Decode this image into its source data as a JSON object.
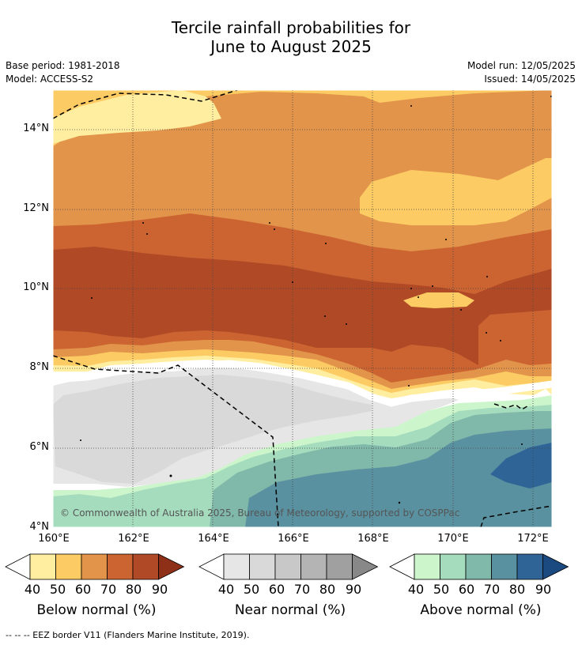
{
  "title_line1": "Tercile rainfall probabilities for",
  "title_line2": "June to August 2025",
  "base_period": "Base period: 1981-2018",
  "model": "Model: ACCESS-S2",
  "model_run": "Model run: 12/05/2025",
  "issued": "Issued: 14/05/2025",
  "copyright": "© Commonwealth of Australia 2025, Bureau of Meteorology, supported by COSPPac",
  "lat_labels": [
    "14°N",
    "12°N",
    "10°N",
    "8°N",
    "6°N",
    "4°N"
  ],
  "lon_labels": [
    "160°E",
    "162°E",
    "164°E",
    "166°E",
    "168°E",
    "170°E",
    "172°E"
  ],
  "legends": {
    "below": {
      "title": "Below normal (%)",
      "ticks": [
        "40",
        "50",
        "60",
        "70",
        "80",
        "90"
      ],
      "colors": [
        "#ffeda0",
        "#fdcb63",
        "#e2954a",
        "#cc6432",
        "#b04a26",
        "#8e3018"
      ]
    },
    "near": {
      "title": "Near normal (%)",
      "ticks": [
        "40",
        "50",
        "60",
        "70",
        "80",
        "90"
      ],
      "colors": [
        "#e6e6e6",
        "#d9d9d9",
        "#c8c8c8",
        "#b4b4b4",
        "#a0a0a0",
        "#888888"
      ]
    },
    "above": {
      "title": "Above normal (%)",
      "ticks": [
        "40",
        "50",
        "60",
        "70",
        "80",
        "90"
      ],
      "colors": [
        "#ccf5cc",
        "#a6dcbe",
        "#80b8aa",
        "#5a91a0",
        "#2e6496",
        "#1a4a80"
      ]
    }
  },
  "footnote": "-- -- -- EEZ border V11 (Flanders Marine Institute, 2019).",
  "colors": {
    "white_gap": "#ffffff",
    "below_40": "#ffeda0",
    "below_50": "#fdcb63",
    "below_60": "#e2954a",
    "below_70": "#cc6432",
    "below_80": "#b04a26",
    "near_40": "#e6e6e6",
    "near_50": "#d9d9d9",
    "above_40": "#ccf5cc",
    "above_50": "#a6dcbe",
    "above_60": "#80b8aa",
    "above_70": "#5a91a0",
    "above_80": "#2e6496"
  }
}
